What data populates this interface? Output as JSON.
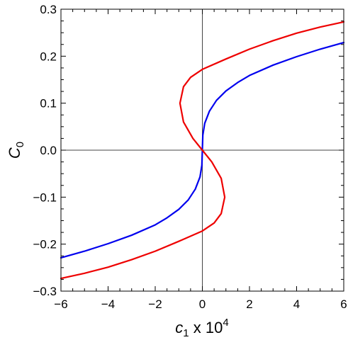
{
  "chart_data": {
    "type": "line",
    "xlabel": {
      "symbol": "c",
      "subscript": "1",
      "suffix": " x 10",
      "superscript": "4"
    },
    "ylabel": {
      "symbol": "C",
      "subscript": "0"
    },
    "xlim": [
      -6,
      6
    ],
    "ylim": [
      -0.3,
      0.3
    ],
    "x_ticks": [
      -6,
      -4,
      -2,
      0,
      2,
      4,
      6
    ],
    "x_tick_labels": [
      "−6",
      "−4",
      "−2",
      "0",
      "2",
      "4",
      "6"
    ],
    "y_ticks": [
      -0.3,
      -0.2,
      -0.1,
      0.0,
      0.1,
      0.2,
      0.3
    ],
    "y_tick_labels": [
      "−0.3",
      "−0.2",
      "−0.1",
      "0.0",
      "0.1",
      "0.2",
      "0.3"
    ],
    "grid": false,
    "reference_lines": {
      "x": 0,
      "y": 0
    },
    "series": [
      {
        "color": "#0000ee",
        "points": [
          [
            -6,
            -0.229
          ],
          [
            -5,
            -0.215
          ],
          [
            -4,
            -0.199
          ],
          [
            -3,
            -0.181
          ],
          [
            -2,
            -0.159
          ],
          [
            -1.5,
            -0.144
          ],
          [
            -1,
            -0.126
          ],
          [
            -0.6,
            -0.106
          ],
          [
            -0.3,
            -0.083
          ],
          [
            -0.1,
            -0.057
          ],
          [
            -0.02,
            -0.032
          ],
          [
            0,
            0
          ],
          [
            0.02,
            0.032
          ],
          [
            0.1,
            0.057
          ],
          [
            0.3,
            0.083
          ],
          [
            0.6,
            0.106
          ],
          [
            1,
            0.126
          ],
          [
            1.5,
            0.144
          ],
          [
            2,
            0.159
          ],
          [
            3,
            0.181
          ],
          [
            4,
            0.199
          ],
          [
            5,
            0.215
          ],
          [
            6,
            0.229
          ]
        ]
      },
      {
        "color": "#ee0000",
        "points": [
          [
            -6,
            -0.273
          ],
          [
            -5,
            -0.262
          ],
          [
            -4,
            -0.249
          ],
          [
            -3,
            -0.233
          ],
          [
            -2,
            -0.215
          ],
          [
            -1,
            -0.194
          ],
          [
            0,
            -0.172
          ],
          [
            0.5,
            -0.155
          ],
          [
            0.8,
            -0.135
          ],
          [
            0.95,
            -0.1
          ],
          [
            0.8,
            -0.06
          ],
          [
            0.4,
            -0.025
          ],
          [
            0,
            0
          ],
          [
            -0.4,
            0.025
          ],
          [
            -0.8,
            0.06
          ],
          [
            -0.95,
            0.1
          ],
          [
            -0.8,
            0.135
          ],
          [
            -0.5,
            0.155
          ],
          [
            0,
            0.172
          ],
          [
            1,
            0.194
          ],
          [
            2,
            0.215
          ],
          [
            3,
            0.233
          ],
          [
            4,
            0.249
          ],
          [
            5,
            0.262
          ],
          [
            6,
            0.273
          ]
        ]
      }
    ]
  }
}
